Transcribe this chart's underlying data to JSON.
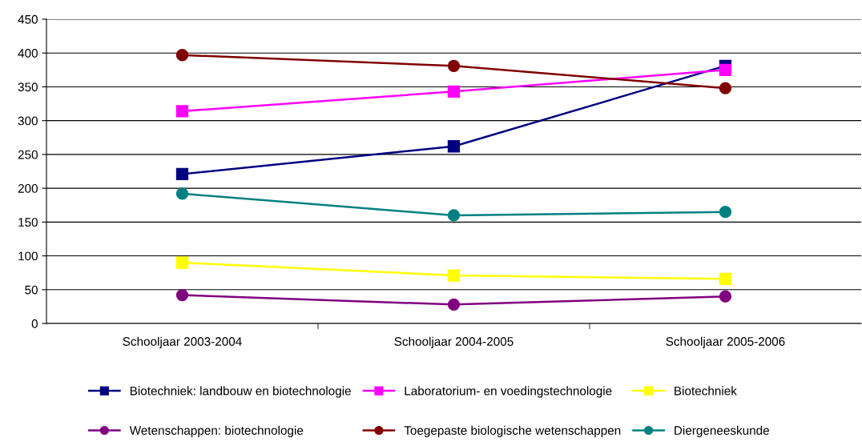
{
  "chart_data": {
    "type": "line",
    "categories": [
      "Schooljaar 2003-2004",
      "Schooljaar 2004-2005",
      "Schooljaar 2005-2006"
    ],
    "series": [
      {
        "name": "Biotechniek: landbouw en biotechnologie",
        "color": "#000080",
        "marker": "square",
        "values": [
          221,
          262,
          381
        ]
      },
      {
        "name": "Laboratorium- en voedingstechnologie",
        "color": "#ff00ff",
        "marker": "square",
        "values": [
          314,
          343,
          375
        ]
      },
      {
        "name": "Biotechniek",
        "color": "#ffff00",
        "marker": "square",
        "values": [
          90,
          71,
          66
        ]
      },
      {
        "name": "Wetenschappen: biotechnologie",
        "color": "#800080",
        "marker": "circle",
        "values": [
          42,
          28,
          40
        ]
      },
      {
        "name": "Toegepaste biologische wetenschappen",
        "color": "#800000",
        "marker": "circle",
        "values": [
          397,
          381,
          348
        ]
      },
      {
        "name": "Diergeneeskunde",
        "color": "#008080",
        "marker": "circle",
        "values": [
          192,
          160,
          165
        ]
      }
    ],
    "ylim": [
      0,
      450
    ],
    "yticks": [
      0,
      50,
      100,
      150,
      200,
      250,
      300,
      350,
      400,
      450
    ],
    "grid": "y",
    "legend": "bottom",
    "line_style": "solid"
  }
}
